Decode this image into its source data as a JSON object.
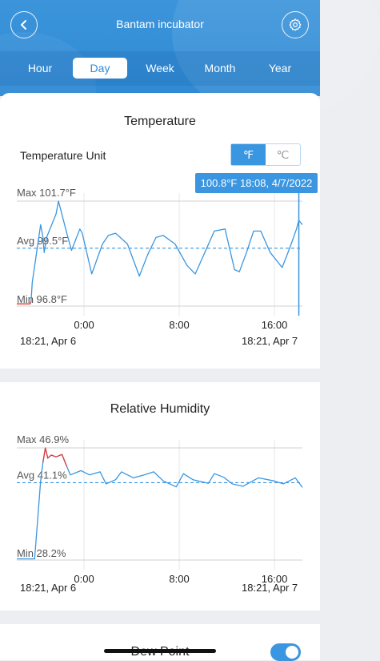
{
  "header": {
    "title": "Bantam incubator",
    "tabs": [
      {
        "label": "Hour",
        "active": false
      },
      {
        "label": "Day",
        "active": true
      },
      {
        "label": "Week",
        "active": false
      },
      {
        "label": "Month",
        "active": false
      },
      {
        "label": "Year",
        "active": false
      }
    ]
  },
  "temperature": {
    "title": "Temperature",
    "unit_label": "Temperature Unit",
    "unit_f": "℉",
    "unit_c": "℃",
    "selected_unit": "F",
    "max_label": "Max 101.7°F",
    "avg_label": "Avg 99.5°F",
    "min_label": "Min 96.8°F",
    "tooltip": "100.8°F  18:08,  4/7/2022",
    "x_ticks": [
      "0:00",
      "8:00",
      "16:00"
    ],
    "start_date": "18:21,  Apr 6",
    "end_date": "18:21,  Apr 7"
  },
  "humidity": {
    "title": "Relative Humidity",
    "max_label": "Max 46.9%",
    "avg_label": "Avg 41.1%",
    "min_label": "Min 28.2%",
    "x_ticks": [
      "0:00",
      "8:00",
      "16:00"
    ],
    "start_date": "18:21,  Apr 6",
    "end_date": "18:21,  Apr 7"
  },
  "dew_point": {
    "label": "Dew Point",
    "enabled": true
  },
  "colors": {
    "accent": "#3a96e0",
    "line": "#3a96e0",
    "alarm": "#e53935"
  },
  "chart_data": [
    {
      "type": "line",
      "title": "Temperature",
      "xlabel": "",
      "ylabel": "",
      "x_tick_labels": [
        "0:00",
        "8:00",
        "16:00"
      ],
      "x_range": [
        "18:21, Apr 6",
        "18:21, Apr 7"
      ],
      "ylim": [
        96.8,
        101.7
      ],
      "average": 99.5,
      "units": "°F",
      "series": [
        {
          "hours_from_start": [
            0,
            1.1,
            1.2,
            1.3,
            2.0,
            2.2,
            2.3,
            2.5,
            3.3,
            3.5,
            4.2,
            4.6,
            5.3,
            5.5,
            6.3,
            7.2,
            7.7,
            8.3,
            9.3,
            10.3,
            11.0,
            11.7,
            12.3,
            13.3,
            14.3,
            15.0,
            15.8,
            16.6,
            17.5,
            18.3,
            18.7,
            19.3,
            19.9,
            20.5,
            21.3,
            22.3,
            23.0,
            23.5,
            23.7,
            24.0
          ],
          "values": [
            96.9,
            96.9,
            97.0,
            97.9,
            100.6,
            100.0,
            99.3,
            100.0,
            101.1,
            101.7,
            100.2,
            99.4,
            100.4,
            100.2,
            98.3,
            99.7,
            100.1,
            100.2,
            99.7,
            98.2,
            99.2,
            100.0,
            100.1,
            99.7,
            98.7,
            98.3,
            99.3,
            100.3,
            100.4,
            98.5,
            98.4,
            99.3,
            100.3,
            100.3,
            99.3,
            98.6,
            99.6,
            100.4,
            100.8,
            100.6
          ]
        }
      ]
    },
    {
      "type": "line",
      "title": "Relative Humidity",
      "xlabel": "",
      "ylabel": "",
      "x_tick_labels": [
        "0:00",
        "8:00",
        "16:00"
      ],
      "x_range": [
        "18:21, Apr 6",
        "18:21, Apr 7"
      ],
      "ylim": [
        28.2,
        46.9
      ],
      "average": 41.1,
      "units": "%",
      "series": [
        {
          "hours_from_start": [
            0,
            1.5,
            2.0,
            2.2,
            2.4,
            2.6,
            2.9,
            3.3,
            3.8,
            4.2,
            4.5,
            5.4,
            6.1,
            7.0,
            7.5,
            8.3,
            8.8,
            9.8,
            10.7,
            11.5,
            12.3,
            13.4,
            14.0,
            14.8,
            16.1,
            16.6,
            17.4,
            18.1,
            19.0,
            20.3,
            21.6,
            22.4,
            23.4,
            24.0
          ],
          "values": [
            28.4,
            28.4,
            41.4,
            44.5,
            46.9,
            45.2,
            45.7,
            45.4,
            45.8,
            43.8,
            42.4,
            43.1,
            42.4,
            42.9,
            40.9,
            41.6,
            42.9,
            41.9,
            42.4,
            42.9,
            41.4,
            40.4,
            42.6,
            41.6,
            41.0,
            42.6,
            42.0,
            40.9,
            40.5,
            41.9,
            41.4,
            40.9,
            41.9,
            40.3
          ]
        }
      ]
    }
  ]
}
